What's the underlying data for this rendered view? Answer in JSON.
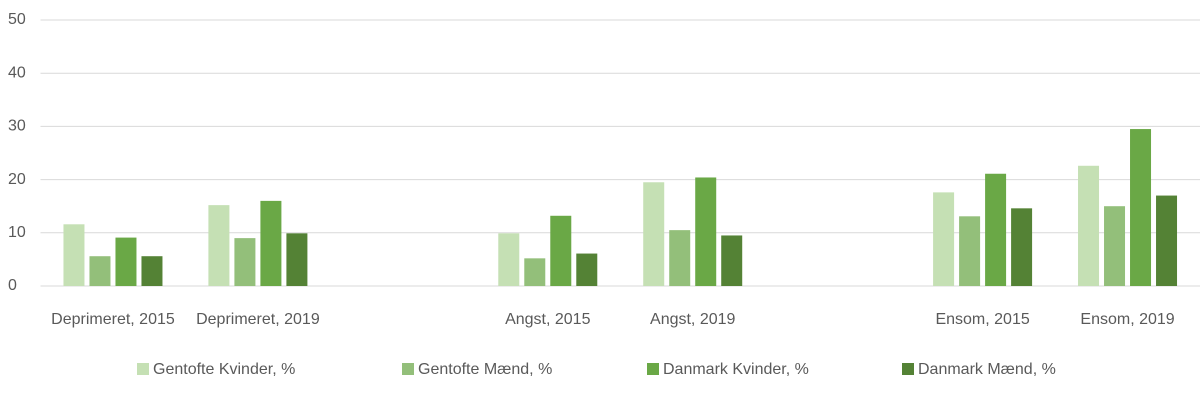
{
  "chart_data": {
    "type": "bar",
    "categories": [
      "Deprimeret, 2015",
      "Deprimeret, 2019",
      null,
      "Angst, 2015",
      "Angst, 2019",
      null,
      "Ensom, 2015",
      "Ensom, 2019"
    ],
    "series": [
      {
        "name": "Gentofte Kvinder, %",
        "color": "#c5e0b4",
        "values": [
          11.6,
          15.2,
          null,
          9.9,
          19.5,
          null,
          17.6,
          22.6
        ]
      },
      {
        "name": "Gentofte Mænd, %",
        "color": "#93bf7a",
        "values": [
          5.6,
          9.0,
          null,
          5.2,
          10.5,
          null,
          13.1,
          15.0
        ]
      },
      {
        "name": "Danmark Kvinder, %",
        "color": "#6aa846",
        "values": [
          9.1,
          16.0,
          null,
          13.2,
          20.4,
          null,
          21.1,
          29.5
        ]
      },
      {
        "name": "Danmark Mænd, %",
        "color": "#548235",
        "values": [
          5.6,
          9.9,
          null,
          6.1,
          9.5,
          null,
          14.6,
          17.0
        ]
      }
    ],
    "ylim": [
      0,
      50
    ],
    "yticks": [
      0,
      10,
      20,
      30,
      40,
      50
    ],
    "grid": true,
    "legend": "bottom"
  }
}
